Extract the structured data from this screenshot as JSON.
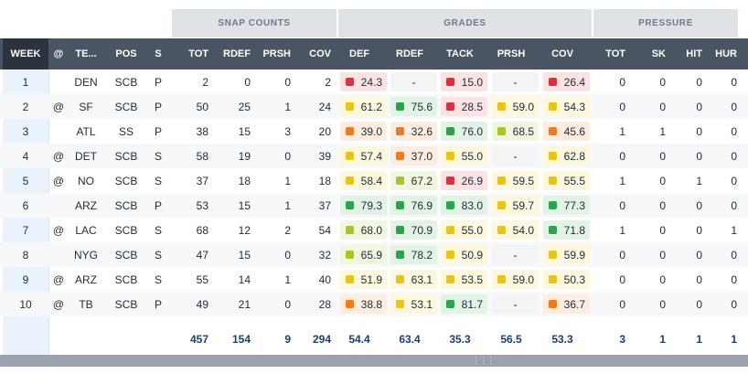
{
  "groups": {
    "snap": "SNAP COUNTS",
    "grades": "GRADES",
    "pressure": "PRESSURE"
  },
  "columns": [
    "WEEK",
    "@",
    "TE...",
    "POS",
    "S",
    "TOT",
    "RDEF",
    "PRSH",
    "COV",
    "DEF",
    "RDEF",
    "TACK",
    "PRSH",
    "COV",
    "TOT",
    "SK",
    "HIT",
    "HUR"
  ],
  "rows": [
    {
      "week": "1",
      "at": "",
      "team": "DEN",
      "pos": "SCB",
      "s": "P",
      "tot": "2",
      "rdef": "0",
      "prsh": "0",
      "cov": "2",
      "g_def": "24.3",
      "g_rdef": "-",
      "g_tack": "15.0",
      "g_prsh": "-",
      "g_cov": "26.4",
      "p_tot": "0",
      "sk": "0",
      "hit": "0",
      "hur": "0"
    },
    {
      "week": "2",
      "at": "@",
      "team": "SF",
      "pos": "SCB",
      "s": "P",
      "tot": "50",
      "rdef": "25",
      "prsh": "1",
      "cov": "24",
      "g_def": "61.2",
      "g_rdef": "75.6",
      "g_tack": "28.5",
      "g_prsh": "59.0",
      "g_cov": "54.3",
      "p_tot": "0",
      "sk": "0",
      "hit": "0",
      "hur": "0"
    },
    {
      "week": "3",
      "at": "",
      "team": "ATL",
      "pos": "SS",
      "s": "P",
      "tot": "38",
      "rdef": "15",
      "prsh": "3",
      "cov": "20",
      "g_def": "39.0",
      "g_rdef": "32.6",
      "g_tack": "76.0",
      "g_prsh": "68.5",
      "g_cov": "45.6",
      "p_tot": "1",
      "sk": "1",
      "hit": "0",
      "hur": "0"
    },
    {
      "week": "4",
      "at": "@",
      "team": "DET",
      "pos": "SCB",
      "s": "S",
      "tot": "58",
      "rdef": "19",
      "prsh": "0",
      "cov": "39",
      "g_def": "57.4",
      "g_rdef": "37.0",
      "g_tack": "55.0",
      "g_prsh": "-",
      "g_cov": "62.8",
      "p_tot": "0",
      "sk": "0",
      "hit": "0",
      "hur": "0"
    },
    {
      "week": "5",
      "at": "@",
      "team": "NO",
      "pos": "SCB",
      "s": "S",
      "tot": "37",
      "rdef": "18",
      "prsh": "1",
      "cov": "18",
      "g_def": "58.4",
      "g_rdef": "67.2",
      "g_tack": "26.9",
      "g_prsh": "59.5",
      "g_cov": "55.5",
      "p_tot": "1",
      "sk": "0",
      "hit": "1",
      "hur": "0"
    },
    {
      "week": "6",
      "at": "",
      "team": "ARZ",
      "pos": "SCB",
      "s": "P",
      "tot": "53",
      "rdef": "15",
      "prsh": "1",
      "cov": "37",
      "g_def": "79.3",
      "g_rdef": "76.9",
      "g_tack": "83.0",
      "g_prsh": "59.7",
      "g_cov": "77.3",
      "p_tot": "0",
      "sk": "0",
      "hit": "0",
      "hur": "0"
    },
    {
      "week": "7",
      "at": "@",
      "team": "LAC",
      "pos": "SCB",
      "s": "S",
      "tot": "68",
      "rdef": "12",
      "prsh": "2",
      "cov": "54",
      "g_def": "68.0",
      "g_rdef": "70.9",
      "g_tack": "55.0",
      "g_prsh": "54.0",
      "g_cov": "71.8",
      "p_tot": "1",
      "sk": "0",
      "hit": "0",
      "hur": "1"
    },
    {
      "week": "8",
      "at": "",
      "team": "NYG",
      "pos": "SCB",
      "s": "S",
      "tot": "47",
      "rdef": "15",
      "prsh": "0",
      "cov": "32",
      "g_def": "65.9",
      "g_rdef": "78.2",
      "g_tack": "50.9",
      "g_prsh": "-",
      "g_cov": "59.9",
      "p_tot": "0",
      "sk": "0",
      "hit": "0",
      "hur": "0"
    },
    {
      "week": "9",
      "at": "@",
      "team": "ARZ",
      "pos": "SCB",
      "s": "S",
      "tot": "55",
      "rdef": "14",
      "prsh": "1",
      "cov": "40",
      "g_def": "51.9",
      "g_rdef": "63.1",
      "g_tack": "53.5",
      "g_prsh": "59.0",
      "g_cov": "50.3",
      "p_tot": "0",
      "sk": "0",
      "hit": "0",
      "hur": "0"
    },
    {
      "week": "10",
      "at": "@",
      "team": "TB",
      "pos": "SCB",
      "s": "P",
      "tot": "49",
      "rdef": "21",
      "prsh": "0",
      "cov": "28",
      "g_def": "38.8",
      "g_rdef": "53.1",
      "g_tack": "81.7",
      "g_prsh": "-",
      "g_cov": "36.7",
      "p_tot": "0",
      "sk": "0",
      "hit": "0",
      "hur": "0"
    }
  ],
  "totals": {
    "tot": "457",
    "rdef": "154",
    "prsh": "9",
    "cov": "294",
    "g_def": "54.4",
    "g_rdef": "63.4",
    "g_tack": "35.3",
    "g_prsh": "56.5",
    "g_cov": "53.3",
    "p_tot": "3",
    "sk": "1",
    "hit": "1",
    "hur": "1"
  },
  "grade_colors": {
    "red": {
      "swatch": "#d6333f",
      "bg": "#fbe3e4"
    },
    "orange": {
      "swatch": "#f07a1e",
      "bg": "#fdece0"
    },
    "yellow": {
      "swatch": "#e9c418",
      "bg": "#fdf7de"
    },
    "lime": {
      "swatch": "#a6c52c",
      "bg": "#f1f6df"
    },
    "green": {
      "swatch": "#2aa34a",
      "bg": "#e2f3e6"
    }
  },
  "scrollbar_grip": "⋮⋮⋮"
}
